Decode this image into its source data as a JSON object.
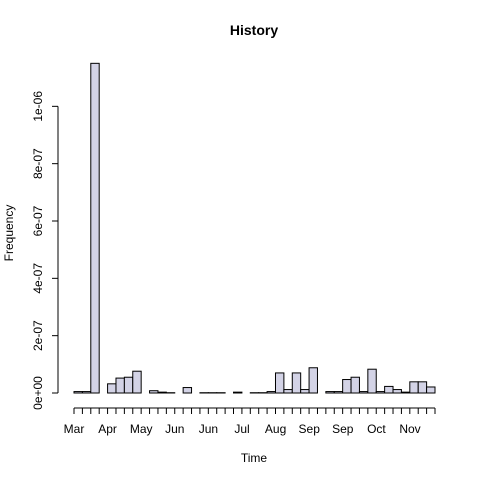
{
  "chart_data": {
    "type": "bar",
    "title": "History",
    "xlabel": "Time",
    "ylabel": "Frequency",
    "ylim": [
      0,
      1.2e-06
    ],
    "y_ticks": [
      0,
      2e-07,
      4e-07,
      6e-07,
      8e-07,
      1e-06
    ],
    "y_tick_labels": [
      "0e+00",
      "2e-07",
      "4e-07",
      "6e-07",
      "8e-07",
      "1e-06"
    ],
    "x_tick_labels": [
      "Mar",
      "Apr",
      "May",
      "Jun",
      "Jun",
      "Jul",
      "Aug",
      "Sep",
      "Sep",
      "Oct",
      "Nov"
    ],
    "bin_count": 43,
    "bar_fill": "#d3d3e6",
    "bar_stroke": "#000000",
    "values": [
      5e-09,
      5e-09,
      1.15e-06,
      0,
      3.2e-08,
      5.2e-08,
      5.5e-08,
      7.6e-08,
      0,
      8e-09,
      3e-09,
      1e-09,
      0,
      1.9e-08,
      0,
      1e-09,
      1e-09,
      1e-09,
      0,
      3e-09,
      0,
      1e-09,
      1e-09,
      5e-09,
      7e-08,
      1.2e-08,
      7e-08,
      1.2e-08,
      8.8e-08,
      0,
      5e-09,
      5e-09,
      4.7e-08,
      5.5e-08,
      5e-09,
      8.3e-08,
      5e-09,
      2.3e-08,
      1.2e-08,
      3e-09,
      3.9e-08,
      3.9e-08,
      2.1e-08
    ]
  }
}
